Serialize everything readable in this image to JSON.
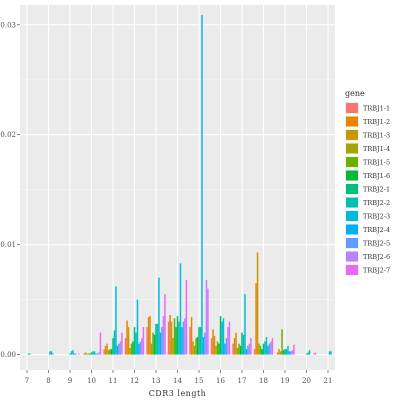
{
  "chart_data": {
    "type": "bar",
    "xlabel": "CDR3 length",
    "ylabel": "",
    "categories": [
      "7",
      "8",
      "9",
      "10",
      "11",
      "12",
      "13",
      "14",
      "15",
      "16",
      "17",
      "18",
      "19",
      "20",
      "21"
    ],
    "yticks": [
      0.0,
      0.01,
      0.02,
      0.03
    ],
    "ytick_labels": [
      "0.00",
      "0.01",
      "0.02",
      "0.03"
    ],
    "ylim": [
      -0.0014,
      0.0318
    ],
    "grid": true,
    "legend": {
      "title": "gene",
      "position": "right"
    },
    "series": [
      {
        "name": "TRBJ1-1",
        "color": "#F8766D",
        "values": [
          0.0,
          0.0,
          0.0,
          0.0,
          0.0005,
          0.0015,
          0.0025,
          0.003,
          0.0025,
          0.0015,
          0.001,
          0.0005,
          0.0,
          0.0,
          0.0
        ]
      },
      {
        "name": "TRBJ1-2",
        "color": "#E58700",
        "values": [
          0.0,
          0.0,
          0.0,
          0.0001,
          0.0008,
          0.0031,
          0.0034,
          0.0036,
          0.0034,
          0.0023,
          0.0015,
          0.0065,
          0.0002,
          0.0,
          0.0
        ]
      },
      {
        "name": "TRBJ1-3",
        "color": "#C99800",
        "values": [
          0.0,
          0.0,
          0.0,
          0.0002,
          0.001,
          0.0025,
          0.0035,
          0.003,
          0.0012,
          0.0017,
          0.002,
          0.0093,
          0.0005,
          0.0,
          0.0
        ]
      },
      {
        "name": "TRBJ1-4",
        "color": "#A3A500",
        "values": [
          0.0,
          0.0,
          0.0,
          0.0001,
          0.0004,
          0.0006,
          0.001,
          0.0015,
          0.0008,
          0.0008,
          0.0006,
          0.001,
          0.0003,
          0.0,
          0.0
        ]
      },
      {
        "name": "TRBJ1-5",
        "color": "#6BB100",
        "values": [
          0.0,
          0.0,
          0.0,
          0.0001,
          0.0005,
          0.001,
          0.002,
          0.0033,
          0.0015,
          0.0012,
          0.001,
          0.0008,
          0.0023,
          0.0,
          0.0
        ]
      },
      {
        "name": "TRBJ1-6",
        "color": "#00BA38",
        "values": [
          0.0,
          0.0,
          0.0,
          0.0001,
          0.0005,
          0.0012,
          0.0018,
          0.0025,
          0.0016,
          0.001,
          0.0008,
          0.0005,
          0.0004,
          0.0,
          0.0
        ]
      },
      {
        "name": "TRBJ2-1",
        "color": "#00BF7D",
        "values": [
          0.0,
          0.0,
          0.0001,
          0.0002,
          0.0015,
          0.0025,
          0.0028,
          0.0035,
          0.0025,
          0.0035,
          0.002,
          0.001,
          0.0005,
          0.0001,
          0.0
        ]
      },
      {
        "name": "TRBJ2-2",
        "color": "#00C0AF",
        "values": [
          0.0001,
          0.0003,
          0.0003,
          0.0003,
          0.0022,
          0.002,
          0.0028,
          0.003,
          0.0025,
          0.003,
          0.0018,
          0.0012,
          0.0005,
          0.0002,
          0.0003
        ]
      },
      {
        "name": "TRBJ2-3",
        "color": "#00BCD8",
        "values": [
          0.0001,
          0.0003,
          0.0004,
          0.0003,
          0.0062,
          0.005,
          0.007,
          0.0083,
          0.0309,
          0.0033,
          0.0055,
          0.0016,
          0.0008,
          0.0004,
          0.0003
        ]
      },
      {
        "name": "TRBJ2-4",
        "color": "#00B0F6",
        "values": [
          0.0,
          0.0001,
          0.0001,
          0.0001,
          0.0008,
          0.001,
          0.002,
          0.0025,
          0.0016,
          0.001,
          0.0005,
          0.0008,
          0.0003,
          0.0,
          0.0
        ]
      },
      {
        "name": "TRBJ2-5",
        "color": "#619CFF",
        "values": [
          0.0,
          0.0,
          0.0001,
          0.0001,
          0.001,
          0.0012,
          0.0025,
          0.003,
          0.002,
          0.0015,
          0.0008,
          0.001,
          0.0003,
          0.0,
          0.0
        ]
      },
      {
        "name": "TRBJ2-6",
        "color": "#B983FF",
        "values": [
          0.0,
          0.0,
          0.0,
          0.0002,
          0.0012,
          0.0015,
          0.0035,
          0.0033,
          0.0068,
          0.0025,
          0.001,
          0.0012,
          0.0004,
          0.0001,
          0.0
        ]
      },
      {
        "name": "TRBJ2-7",
        "color": "#E76BF3",
        "values": [
          0.0,
          0.0,
          0.0001,
          0.002,
          0.002,
          0.0025,
          0.0055,
          0.0068,
          0.006,
          0.003,
          0.0015,
          0.0015,
          0.0009,
          0.0002,
          0.0
        ]
      }
    ]
  }
}
